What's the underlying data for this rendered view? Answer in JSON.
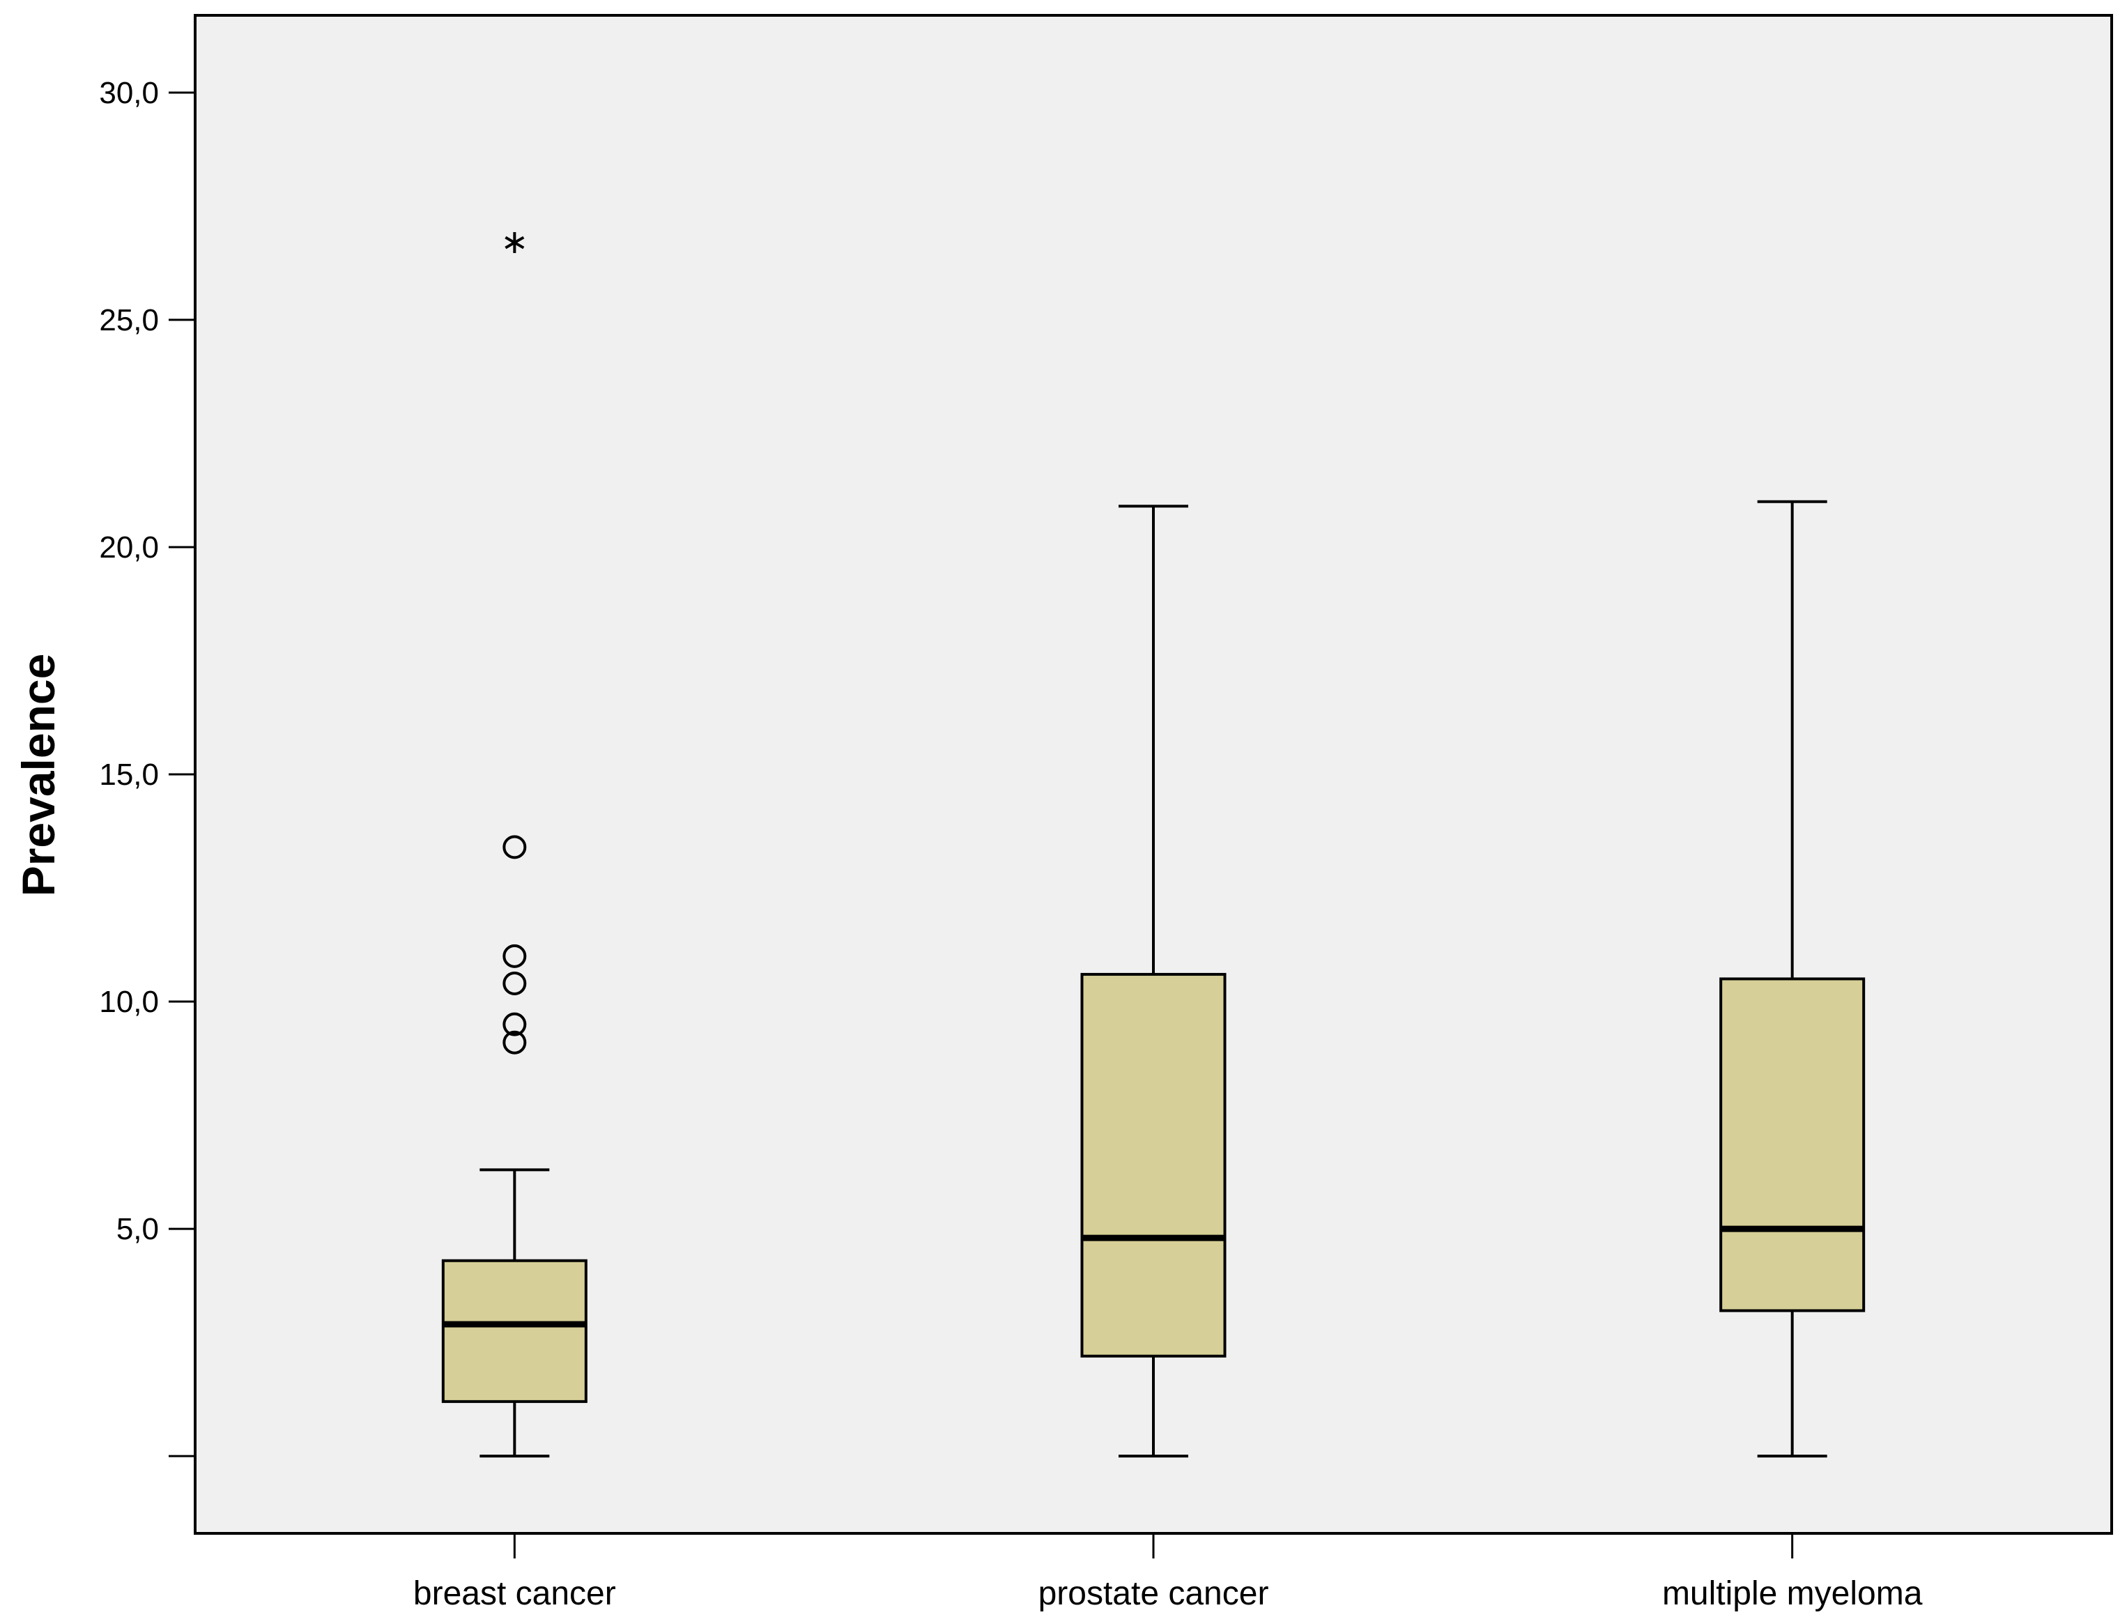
{
  "chart_data": {
    "type": "box",
    "title": "",
    "xlabel": "",
    "ylabel": "Prevalence",
    "ylim": [
      -1.7,
      31.7
    ],
    "yticks": [
      {
        "value": 0,
        "label": ""
      },
      {
        "value": 5,
        "label": "5,0"
      },
      {
        "value": 10,
        "label": "10,0"
      },
      {
        "value": 15,
        "label": "15,0"
      },
      {
        "value": 20,
        "label": "20,0"
      },
      {
        "value": 25,
        "label": "25,0"
      },
      {
        "value": 30,
        "label": "30,0"
      }
    ],
    "grid": false,
    "box_fill": "#d6cf97",
    "background": "#f0f0f0",
    "categories": [
      "breast cancer",
      "prostate cancer",
      "multiple myeloma"
    ],
    "boxes": [
      {
        "category": "breast cancer",
        "whisker_low": 0.0,
        "q1": 1.2,
        "median": 2.9,
        "q3": 4.3,
        "whisker_high": 6.3,
        "outliers": [
          9.1,
          9.5,
          10.4,
          11.0,
          13.4
        ],
        "extremes": [
          26.7
        ]
      },
      {
        "category": "prostate cancer",
        "whisker_low": 0.0,
        "q1": 2.2,
        "median": 4.8,
        "q3": 10.6,
        "whisker_high": 20.9,
        "outliers": [],
        "extremes": []
      },
      {
        "category": "multiple myeloma",
        "whisker_low": 0.0,
        "q1": 3.2,
        "median": 5.0,
        "q3": 10.5,
        "whisker_high": 21.0,
        "outliers": [],
        "extremes": []
      }
    ]
  }
}
